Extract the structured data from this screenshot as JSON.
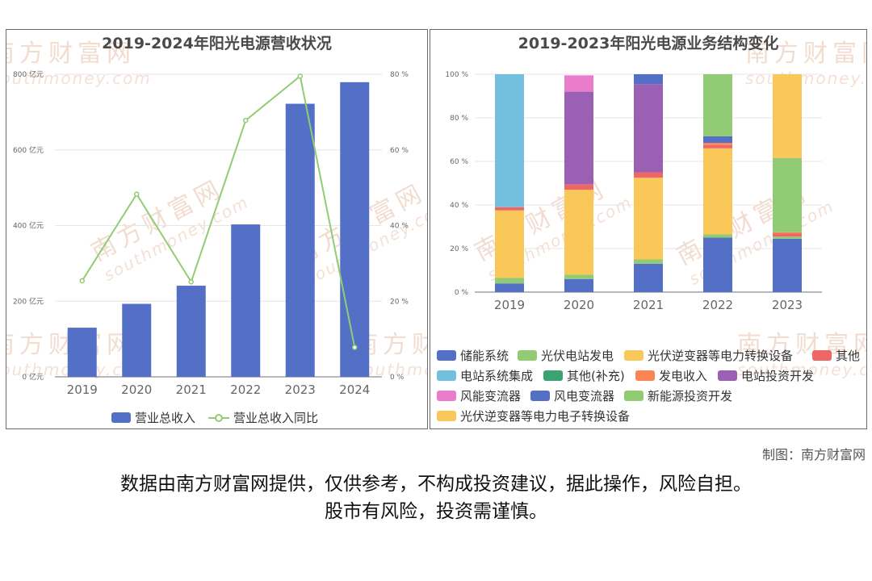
{
  "chart_data": [
    {
      "type": "bar",
      "title": "2019-2024年阳光电源营收状况",
      "categories": [
        "2019",
        "2020",
        "2021",
        "2022",
        "2023",
        "2024"
      ],
      "series": [
        {
          "name": "营业总收入",
          "type": "bar",
          "axis": "left",
          "color": "#5470c6",
          "values": [
            130,
            193,
            241,
            403,
            722,
            779
          ]
        },
        {
          "name": "营业总收入同比",
          "type": "line",
          "axis": "right",
          "color": "#91cc75",
          "values": [
            25.4,
            48.3,
            25.1,
            67.8,
            79.5,
            7.8
          ]
        }
      ],
      "y_left": {
        "ylim": [
          0,
          800
        ],
        "ticks": [
          "0 亿元",
          "200 亿元",
          "400 亿元",
          "600 亿元",
          "800 亿元"
        ]
      },
      "y_right": {
        "ylim": [
          0,
          80
        ],
        "ticks": [
          "0 %",
          "20 %",
          "40 %",
          "60 %",
          "80 %"
        ]
      },
      "legend": "bottom",
      "grid": true
    },
    {
      "type": "bar",
      "stacked": true,
      "title": "2019-2023年阳光电源业务结构变化",
      "categories": [
        "2019",
        "2020",
        "2021",
        "2022",
        "2023"
      ],
      "ylim": [
        0,
        100
      ],
      "y_ticks": [
        "0 %",
        "20 %",
        "40 %",
        "60 %",
        "80 %",
        "100 %"
      ],
      "legend": "bottom",
      "grid": true,
      "series": [
        {
          "name": "储能系统",
          "color": "#5470c6",
          "values": [
            4,
            6,
            13,
            25,
            24.5
          ]
        },
        {
          "name": "光伏电站发电",
          "color": "#91cc75",
          "values": [
            2.5,
            2,
            2,
            1.5,
            1
          ]
        },
        {
          "name": "光伏逆变器等电力转换设备",
          "color": "#fac858",
          "values": [
            31,
            39,
            37.5,
            39.5,
            0
          ]
        },
        {
          "name": "其他",
          "color": "#ee6666",
          "values": [
            1.5,
            2.5,
            2.5,
            1.5,
            1.5
          ]
        },
        {
          "name": "电站系统集成",
          "color": "#73c0de",
          "values": [
            61,
            0,
            0,
            0,
            0
          ]
        },
        {
          "name": "其他(补充)",
          "color": "#3ba272",
          "values": [
            0,
            0,
            0,
            0,
            0
          ]
        },
        {
          "name": "发电收入",
          "color": "#fc8452",
          "values": [
            0,
            0,
            0,
            1,
            0.5
          ]
        },
        {
          "name": "电站投资开发",
          "color": "#9a60b4",
          "values": [
            0,
            42.5,
            40.5,
            0,
            0
          ]
        },
        {
          "name": "风能变流器",
          "color": "#ea7ccc",
          "values": [
            0,
            7.5,
            0,
            0,
            0
          ]
        },
        {
          "name": "风电变流器",
          "color": "#5470c6",
          "values": [
            0,
            0,
            4.5,
            3,
            0
          ]
        },
        {
          "name": "新能源投资开发",
          "color": "#91cc75",
          "values": [
            0,
            0,
            0,
            28.5,
            34
          ]
        },
        {
          "name": "光伏逆变器等电力电子转换设备",
          "color": "#fac858",
          "values": [
            0,
            0,
            0,
            0,
            38.5
          ]
        }
      ]
    }
  ],
  "watermark": {
    "cn": "南方财富网",
    "en": "southmoney.com"
  },
  "credit": "制图：南方财富网",
  "disclaimer": [
    "数据由南方财富网提供，仅供参考，不构成投资建议，据此操作，风险自担。",
    "股市有风险，投资需谨慎。"
  ]
}
